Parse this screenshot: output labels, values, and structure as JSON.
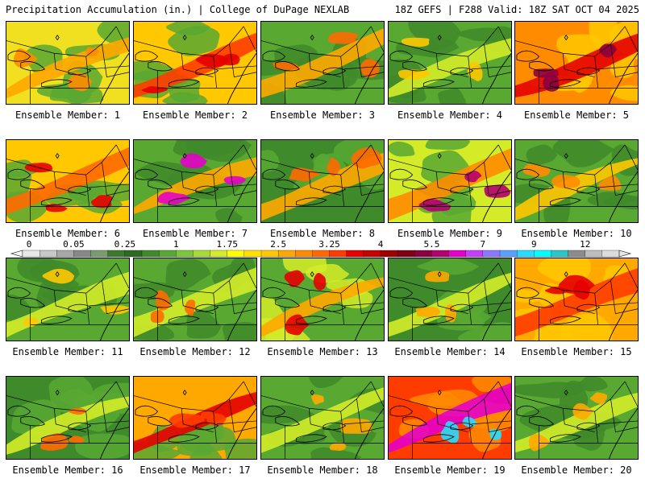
{
  "header": {
    "title": "Precipitation Accumulation (in.) | College of DuPage NEXLAB",
    "valid": "18Z GEFS | F288 Valid: 18Z SAT OCT 04 2025"
  },
  "colorbar": {
    "tick_labels": [
      "0",
      "0.05",
      "0.25",
      "1",
      "1.75",
      "2.5",
      "3.25",
      "4",
      "5.5",
      "7",
      "9",
      "12"
    ],
    "tick_bin_index": [
      0,
      3,
      6,
      9,
      12,
      15,
      18,
      21,
      24,
      27,
      30,
      33
    ],
    "colors": [
      "#e8e8e8",
      "#c8c8c8",
      "#a8a8a8",
      "#888888",
      "#7a9c6e",
      "#3d7a2e",
      "#2e6b22",
      "#3f8a2a",
      "#58a832",
      "#7cc83a",
      "#a8dc32",
      "#d4ec28",
      "#ffff00",
      "#ffe000",
      "#ffc800",
      "#ffa800",
      "#ff8c00",
      "#ff6a00",
      "#ff3c00",
      "#e60000",
      "#c80000",
      "#a00000",
      "#820014",
      "#8c0040",
      "#b4006e",
      "#e600c8",
      "#c83cff",
      "#8c78ff",
      "#5aa0ff",
      "#28dcff",
      "#00ffff",
      "#28c8c8",
      "#8c8c8c",
      "#bebebe",
      "#dcdcdc"
    ]
  },
  "members": [
    {
      "label": "Ensemble Member: 1"
    },
    {
      "label": "Ensemble Member: 2"
    },
    {
      "label": "Ensemble Member: 3"
    },
    {
      "label": "Ensemble Member: 4"
    },
    {
      "label": "Ensemble Member: 5"
    },
    {
      "label": "Ensemble Member: 6"
    },
    {
      "label": "Ensemble Member: 7"
    },
    {
      "label": "Ensemble Member: 8"
    },
    {
      "label": "Ensemble Member: 9"
    },
    {
      "label": "Ensemble Member: 10"
    },
    {
      "label": "Ensemble Member: 11"
    },
    {
      "label": "Ensemble Member: 12"
    },
    {
      "label": "Ensemble Member: 13"
    },
    {
      "label": "Ensemble Member: 14"
    },
    {
      "label": "Ensemble Member: 15"
    },
    {
      "label": "Ensemble Member: 16"
    },
    {
      "label": "Ensemble Member: 17"
    },
    {
      "label": "Ensemble Member: 18"
    },
    {
      "label": "Ensemble Member: 19"
    },
    {
      "label": "Ensemble Member: 20"
    }
  ]
}
